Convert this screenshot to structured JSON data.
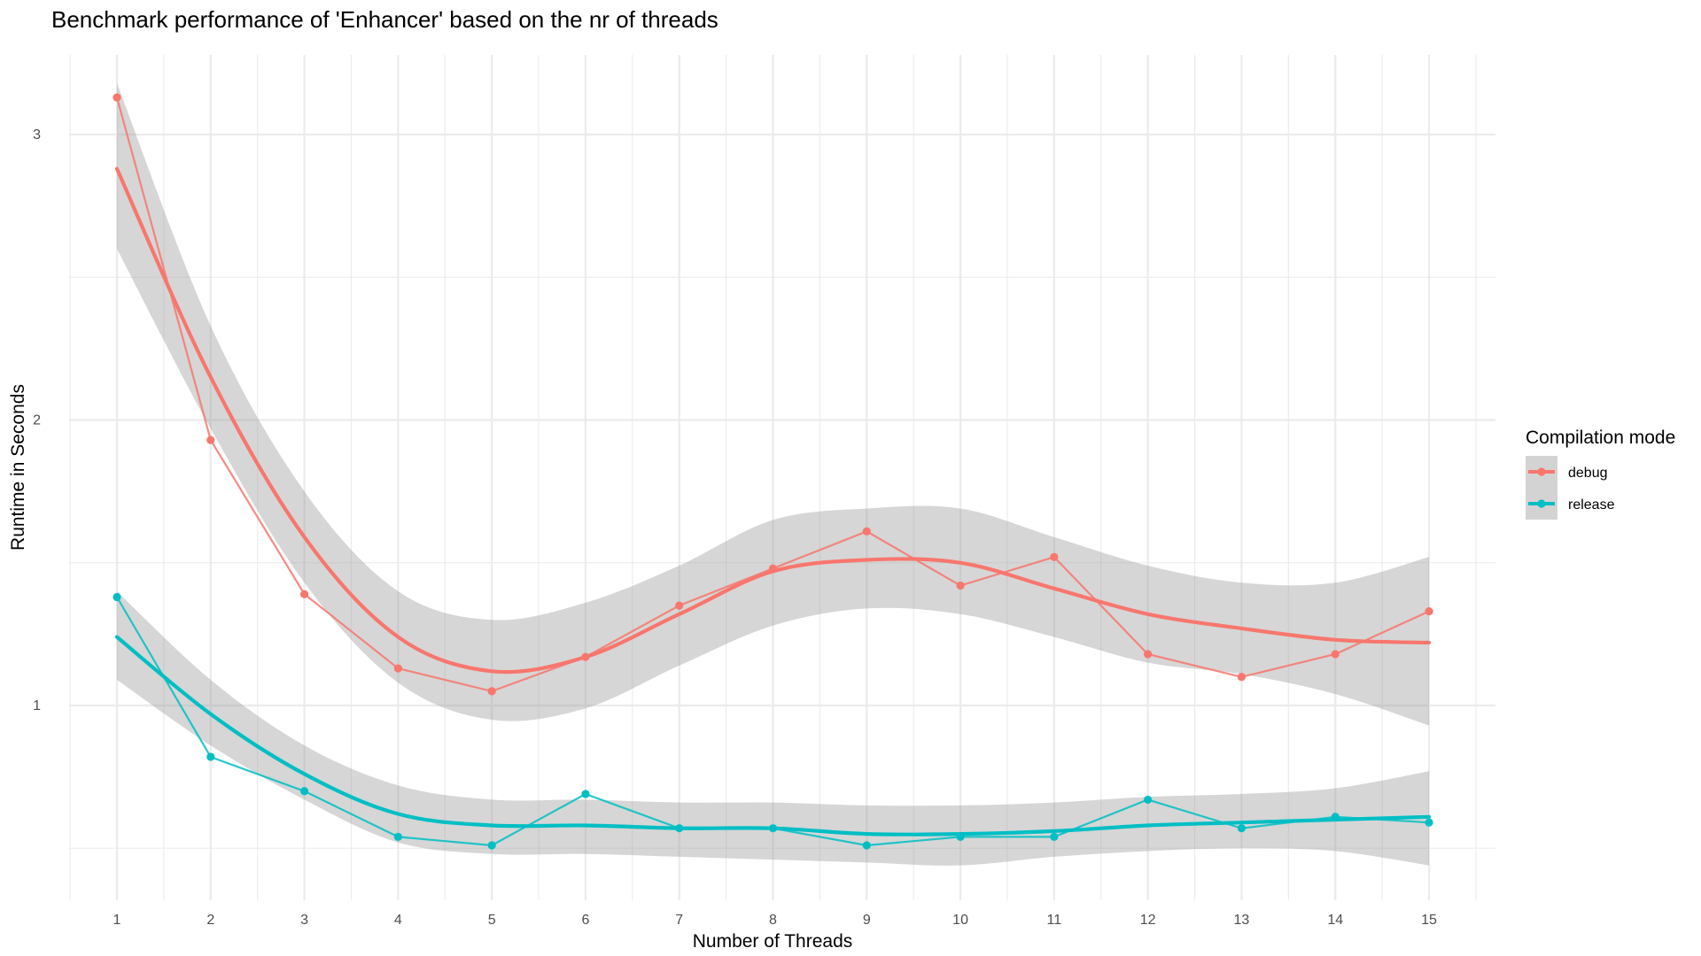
{
  "chart_data": {
    "type": "line",
    "title": "Benchmark performance of 'Enhancer' based on the nr of threads",
    "xlabel": "Number of Threads",
    "ylabel": "Runtime in Seconds",
    "x": [
      1,
      2,
      3,
      4,
      5,
      6,
      7,
      8,
      9,
      10,
      11,
      12,
      13,
      14,
      15
    ],
    "xlim": [
      0.5,
      15.5
    ],
    "ylim": [
      0.32,
      3.23
    ],
    "yticks": [
      1,
      2,
      3
    ],
    "grid": true,
    "legend": {
      "title": "Compilation mode",
      "position": "right"
    },
    "series": [
      {
        "name": "debug",
        "color": "#F8766D",
        "values": [
          3.13,
          1.93,
          1.39,
          1.13,
          1.05,
          1.17,
          1.35,
          1.48,
          1.61,
          1.42,
          1.52,
          1.18,
          1.1,
          1.18,
          1.33
        ],
        "smooth": [
          2.88,
          2.15,
          1.59,
          1.24,
          1.12,
          1.17,
          1.32,
          1.47,
          1.51,
          1.5,
          1.41,
          1.32,
          1.27,
          1.23,
          1.22
        ],
        "smooth_upper": [
          3.18,
          2.33,
          1.75,
          1.4,
          1.3,
          1.36,
          1.49,
          1.65,
          1.69,
          1.69,
          1.59,
          1.49,
          1.43,
          1.43,
          1.52
        ],
        "smooth_lower": [
          2.6,
          1.97,
          1.43,
          1.08,
          0.95,
          0.99,
          1.14,
          1.28,
          1.34,
          1.32,
          1.24,
          1.15,
          1.11,
          1.04,
          0.93
        ]
      },
      {
        "name": "release",
        "color": "#00BFC4",
        "values": [
          1.38,
          0.82,
          0.7,
          0.54,
          0.51,
          0.69,
          0.57,
          0.57,
          0.51,
          0.54,
          0.54,
          0.67,
          0.57,
          0.61,
          0.59
        ],
        "smooth": [
          1.24,
          0.97,
          0.76,
          0.62,
          0.58,
          0.58,
          0.57,
          0.57,
          0.55,
          0.55,
          0.56,
          0.58,
          0.59,
          0.6,
          0.61
        ],
        "smooth_upper": [
          1.4,
          1.09,
          0.86,
          0.72,
          0.67,
          0.67,
          0.66,
          0.66,
          0.65,
          0.65,
          0.66,
          0.68,
          0.69,
          0.71,
          0.77
        ],
        "smooth_lower": [
          1.09,
          0.86,
          0.67,
          0.52,
          0.48,
          0.48,
          0.47,
          0.46,
          0.45,
          0.44,
          0.47,
          0.49,
          0.5,
          0.49,
          0.44
        ]
      }
    ]
  }
}
